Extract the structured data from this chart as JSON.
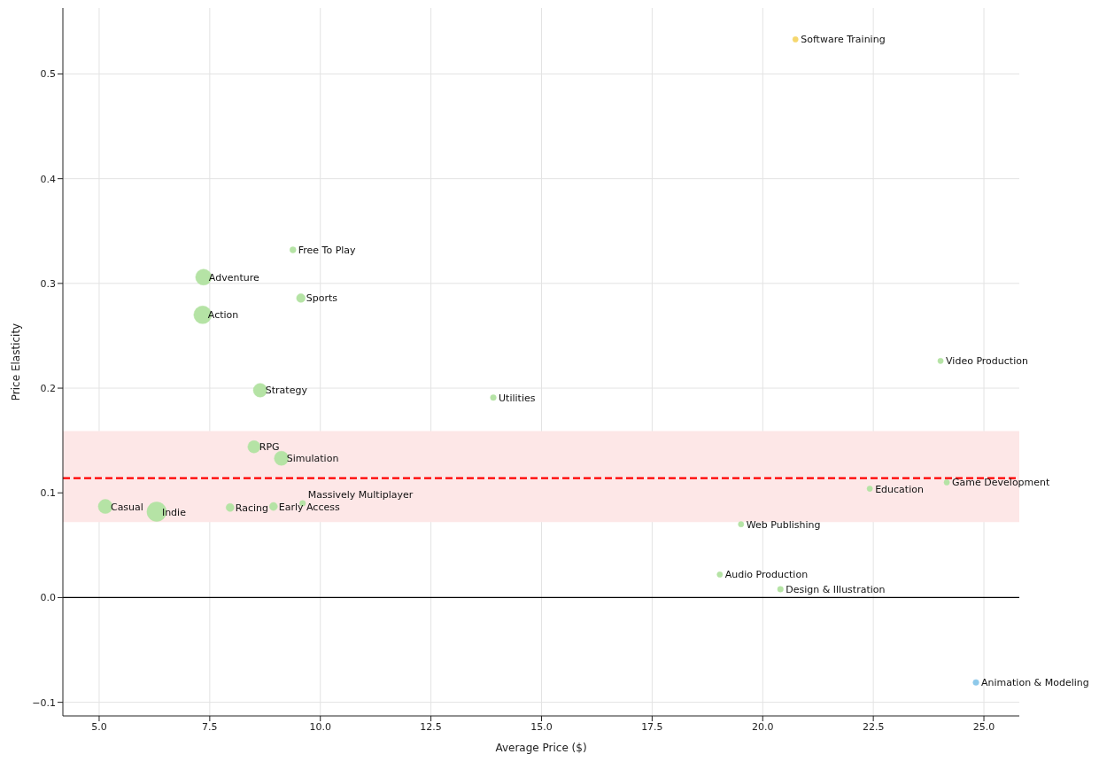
{
  "chart_data": {
    "type": "bubble",
    "xlabel": "Average Price ($)",
    "ylabel": "Price Elasticity",
    "xlim": [
      4.18,
      25.8
    ],
    "ylim": [
      -0.113,
      0.563
    ],
    "xticks": [
      {
        "value": 5,
        "label": "5.0"
      },
      {
        "value": 7.5,
        "label": "7.5"
      },
      {
        "value": 10,
        "label": "10.0"
      },
      {
        "value": 12.5,
        "label": "12.5"
      },
      {
        "value": 15,
        "label": "15.0"
      },
      {
        "value": 17.5,
        "label": "17.5"
      },
      {
        "value": 20,
        "label": "20.0"
      },
      {
        "value": 22.5,
        "label": "22.5"
      },
      {
        "value": 25,
        "label": "25.0"
      }
    ],
    "yticks": [
      {
        "value": -0.1,
        "label": "−0.1"
      },
      {
        "value": 0,
        "label": "0.0"
      },
      {
        "value": 0.1,
        "label": "0.1"
      },
      {
        "value": 0.2,
        "label": "0.2"
      },
      {
        "value": 0.3,
        "label": "0.3"
      },
      {
        "value": 0.4,
        "label": "0.4"
      },
      {
        "value": 0.5,
        "label": "0.5"
      }
    ],
    "grid": true,
    "x": [
      20.74,
      9.38,
      7.36,
      9.56,
      7.34,
      24.02,
      8.64,
      13.91,
      8.5,
      9.12,
      22.42,
      24.16,
      5.14,
      6.3,
      7.96,
      8.94,
      9.6,
      19.51,
      19.03,
      20.4,
      24.82
    ],
    "values": [
      0.533,
      0.332,
      0.306,
      0.286,
      0.27,
      0.226,
      0.198,
      0.191,
      0.144,
      0.133,
      0.104,
      0.11,
      0.087,
      0.082,
      0.086,
      0.087,
      0.09,
      0.07,
      0.022,
      0.008,
      -0.081
    ],
    "sizes": [
      0.08,
      0.1,
      0.67,
      0.2,
      0.83,
      0.08,
      0.5,
      0.09,
      0.4,
      0.53,
      0.08,
      0.08,
      0.53,
      1,
      0.17,
      0.17,
      0.09,
      0.08,
      0.08,
      0.09,
      0.09
    ],
    "colors": [
      "#f5d76e",
      "#b5e3a5",
      "#b5e3a5",
      "#b5e3a5",
      "#b5e3a5",
      "#b5e3a5",
      "#b5e3a5",
      "#b5e3a5",
      "#b5e3a5",
      "#b5e3a5",
      "#b5e3a5",
      "#b5e3a5",
      "#b5e3a5",
      "#b5e3a5",
      "#b5e3a5",
      "#b5e3a5",
      "#b5e3a5",
      "#b5e3a5",
      "#b5e3a5",
      "#b5e3a5",
      "#8ec9ea"
    ],
    "annotations": [
      {
        "text": "Software Training",
        "x": 20.74,
        "y": 0.533
      },
      {
        "text": "Free To Play",
        "x": 9.38,
        "y": 0.332
      },
      {
        "text": "Adventure",
        "x": 7.36,
        "y": 0.306
      },
      {
        "text": "Sports",
        "x": 9.56,
        "y": 0.286
      },
      {
        "text": "Action",
        "x": 7.34,
        "y": 0.27
      },
      {
        "text": "Video Production",
        "x": 24.02,
        "y": 0.226
      },
      {
        "text": "Strategy",
        "x": 8.64,
        "y": 0.198
      },
      {
        "text": "Utilities",
        "x": 13.91,
        "y": 0.191
      },
      {
        "text": "RPG",
        "x": 8.5,
        "y": 0.144
      },
      {
        "text": "Simulation",
        "x": 9.12,
        "y": 0.133
      },
      {
        "text": "Education",
        "x": 22.42,
        "y": 0.104
      },
      {
        "text": "Game Development",
        "x": 24.16,
        "y": 0.11
      },
      {
        "text": "Casual",
        "x": 5.14,
        "y": 0.087
      },
      {
        "text": "Indie",
        "x": 6.3,
        "y": 0.082
      },
      {
        "text": "Racing",
        "x": 7.96,
        "y": 0.086
      },
      {
        "text": "Early Access",
        "x": 8.94,
        "y": 0.087
      },
      {
        "text": "Massively Multiplayer",
        "x": 9.6,
        "y": 0.09
      },
      {
        "text": "Web Publishing",
        "x": 19.51,
        "y": 0.07
      },
      {
        "text": "Audio Production",
        "x": 19.03,
        "y": 0.022
      },
      {
        "text": "Design & Illustration",
        "x": 20.4,
        "y": 0.008
      },
      {
        "text": "Animation & Modeling",
        "x": 24.82,
        "y": -0.081
      }
    ],
    "ref_lines": [
      {
        "axis": "y",
        "value": 0.114,
        "color": "#ff0000",
        "line_style": "dashed"
      },
      {
        "axis": "y",
        "value": 0,
        "color": "#000000",
        "line_style": "solid"
      }
    ],
    "bands": [
      {
        "axis": "y",
        "from": 0.072,
        "to": 0.159,
        "color": "#fde7e7"
      }
    ]
  }
}
